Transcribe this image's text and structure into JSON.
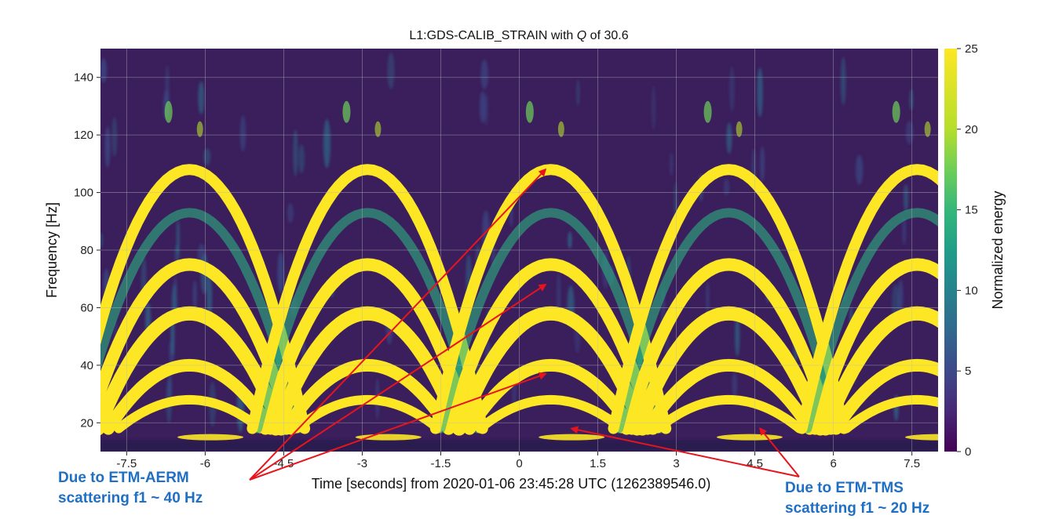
{
  "chart_data": {
    "type": "heatmap",
    "title": "L1:GDS-CALIB_STRAIN with Q of 30.6",
    "title_q_symbol": "Q",
    "xlabel": "Time [seconds] from 2020-01-06 23:45:28 UTC (1262389546.0)",
    "ylabel": "Frequency [Hz]",
    "xlim": [
      -8,
      8
    ],
    "ylim": [
      10,
      150
    ],
    "x_ticks": [
      {
        "value": -7.5,
        "label": "-7.5"
      },
      {
        "value": -6,
        "label": "-6"
      },
      {
        "value": -4.5,
        "label": "-4.5"
      },
      {
        "value": -3,
        "label": "-3"
      },
      {
        "value": -1.5,
        "label": "-1.5"
      },
      {
        "value": 0,
        "label": "0"
      },
      {
        "value": 1.5,
        "label": "1.5"
      },
      {
        "value": 3,
        "label": "3"
      },
      {
        "value": 4.5,
        "label": "4.5"
      },
      {
        "value": 6,
        "label": "6"
      },
      {
        "value": 7.5,
        "label": "7.5"
      }
    ],
    "y_ticks": [
      {
        "value": 20,
        "label": "20"
      },
      {
        "value": 40,
        "label": "40"
      },
      {
        "value": 60,
        "label": "60"
      },
      {
        "value": 80,
        "label": "80"
      },
      {
        "value": 100,
        "label": "100"
      },
      {
        "value": 120,
        "label": "120"
      },
      {
        "value": 140,
        "label": "140"
      }
    ],
    "grid": true,
    "colorbar": {
      "label": "Normalized energy",
      "range": [
        0,
        25
      ],
      "colormap": "viridis",
      "ticks": [
        {
          "value": 0,
          "label": "0"
        },
        {
          "value": 5,
          "label": "5"
        },
        {
          "value": 10,
          "label": "10"
        },
        {
          "value": 15,
          "label": "15"
        },
        {
          "value": 20,
          "label": "20"
        },
        {
          "value": 25,
          "label": "25"
        }
      ]
    },
    "arch_peak_times": [
      -6.3,
      -2.9,
      0.6,
      4.0,
      7.6
    ],
    "annotations": [
      {
        "lines": [
          "Due to ETM-AERM",
          "scattering f1 ~ 40 Hz"
        ],
        "color": "#1f6fc4",
        "arrow_color": "#e8141c",
        "targets": [
          {
            "x": 0.5,
            "y": 108
          },
          {
            "x": 0.5,
            "y": 68
          },
          {
            "x": 0.5,
            "y": 37
          }
        ]
      },
      {
        "lines": [
          "Due to ETM-TMS",
          "scattering f1 ~ 20 Hz"
        ],
        "color": "#1f6fc4",
        "arrow_color": "#e8141c",
        "targets": [
          {
            "x": 1.0,
            "y": 18
          },
          {
            "x": 4.6,
            "y": 18
          }
        ]
      }
    ]
  }
}
